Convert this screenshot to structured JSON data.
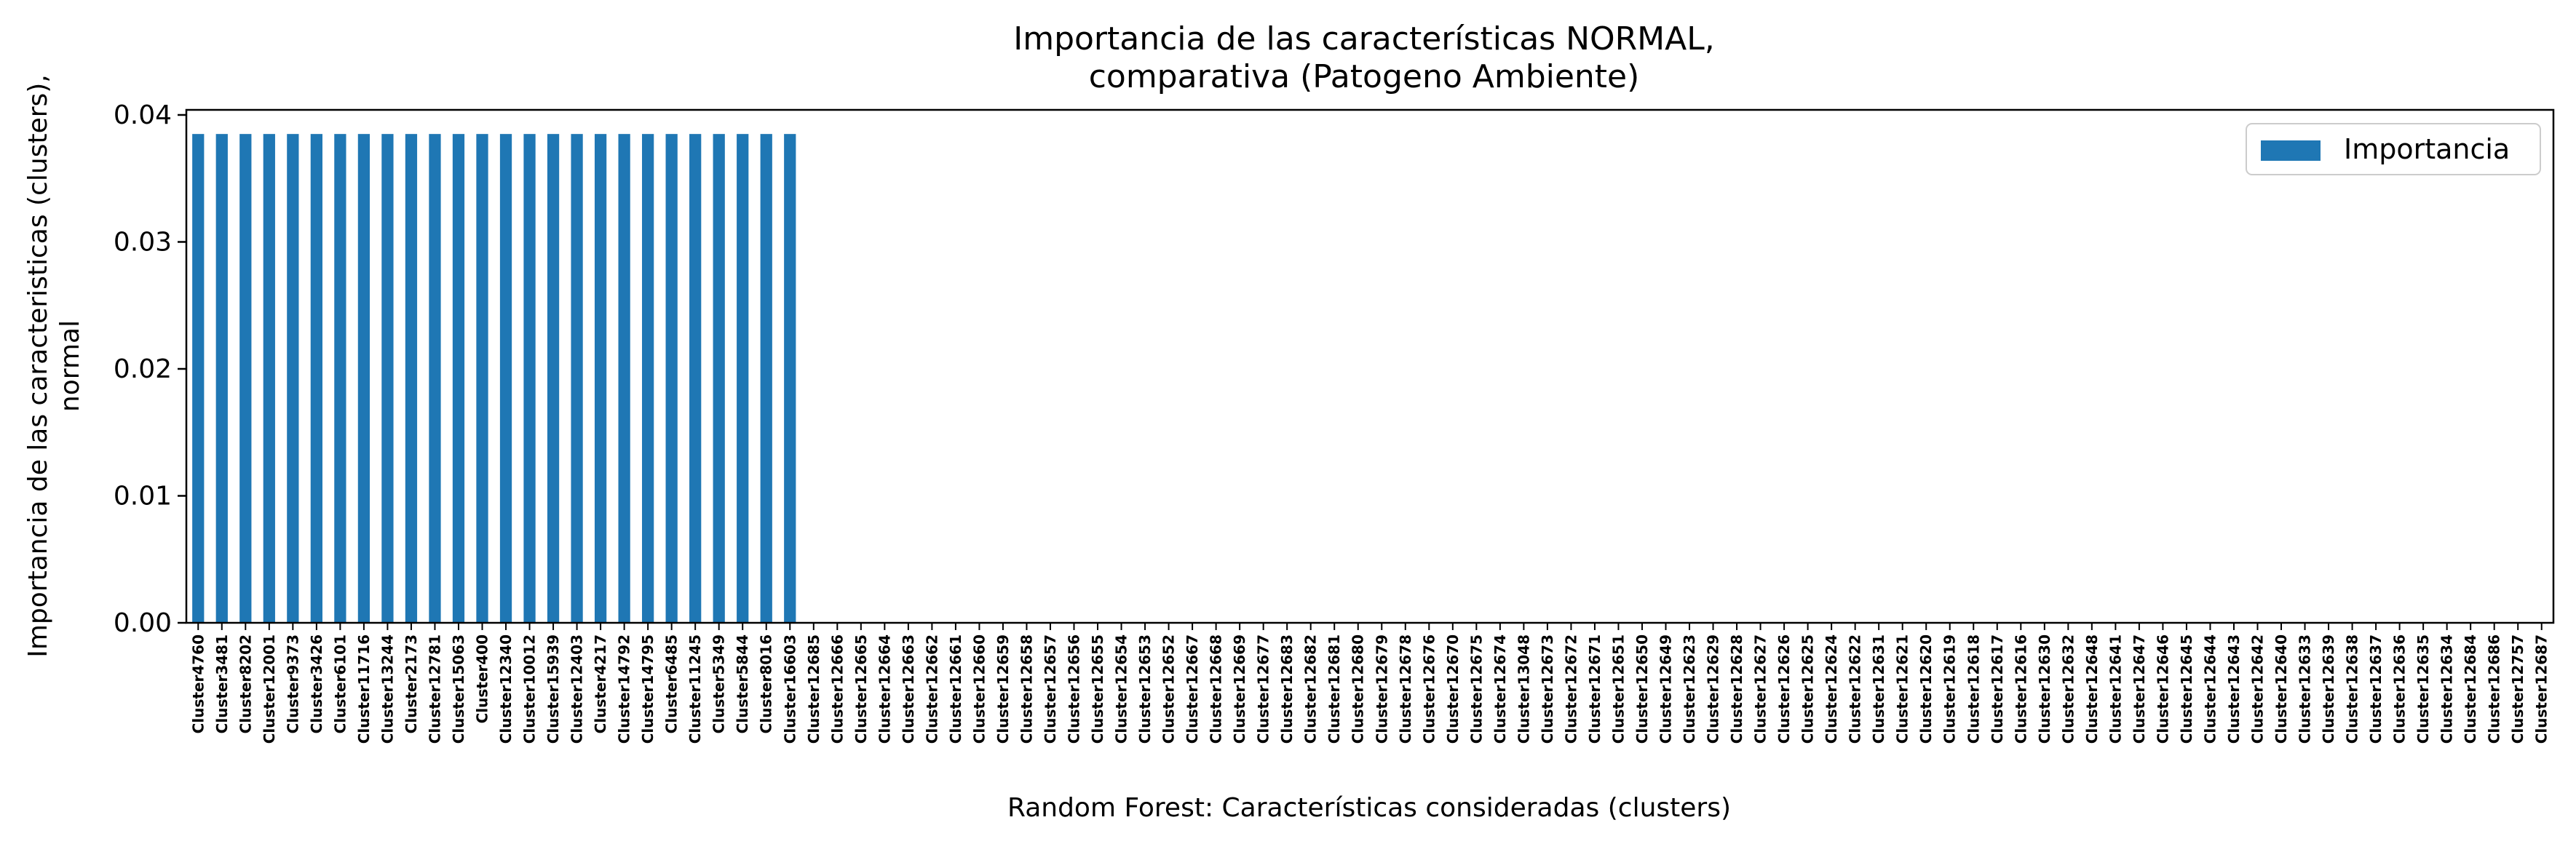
{
  "chart_data": {
    "type": "bar",
    "title": "Importancia de las características NORMAL,\ncomparativa (Patogeno Ambiente)",
    "xlabel": "Random Forest: Características consideradas (clusters)",
    "ylabel": "Importancia de las caracteristicas (clusters),\nnormal",
    "ylim": [
      0,
      0.0404
    ],
    "yticks": [
      "0.00",
      "0.01",
      "0.02",
      "0.03",
      "0.04"
    ],
    "ytick_values": [
      0,
      0.01,
      0.02,
      0.03,
      0.04
    ],
    "legend": {
      "position": "top-right",
      "entries": [
        "Importancia"
      ]
    },
    "grid": false,
    "color": "#1f77b4",
    "series": [
      {
        "name": "Importancia",
        "values": [
          0.0385,
          0.0385,
          0.0385,
          0.0385,
          0.0385,
          0.0385,
          0.0385,
          0.0385,
          0.0385,
          0.0385,
          0.0385,
          0.0385,
          0.0385,
          0.0385,
          0.0385,
          0.0385,
          0.0385,
          0.0385,
          0.0385,
          0.0385,
          0.0385,
          0.0385,
          0.0385,
          0.0385,
          0.0385,
          0.0385,
          0,
          0,
          0,
          0,
          0,
          0,
          0,
          0,
          0,
          0,
          0,
          0,
          0,
          0,
          0,
          0,
          0,
          0,
          0,
          0,
          0,
          0,
          0,
          0,
          0,
          0,
          0,
          0,
          0,
          0,
          0,
          0,
          0,
          0,
          0,
          0,
          0,
          0,
          0,
          0,
          0,
          0,
          0,
          0,
          0,
          0,
          0,
          0,
          0,
          0,
          0,
          0,
          0,
          0,
          0,
          0,
          0,
          0,
          0,
          0,
          0,
          0,
          0,
          0,
          0,
          0,
          0,
          0,
          0,
          0,
          0,
          0,
          0,
          0
        ]
      }
    ],
    "categories": [
      "Cluster4760",
      "Cluster3481",
      "Cluster8202",
      "Cluster12001",
      "Cluster9373",
      "Cluster3426",
      "Cluster6101",
      "Cluster11716",
      "Cluster13244",
      "Cluster2173",
      "Cluster12781",
      "Cluster15063",
      "Cluster400",
      "Cluster12340",
      "Cluster10012",
      "Cluster15939",
      "Cluster12403",
      "Cluster4217",
      "Cluster14792",
      "Cluster14795",
      "Cluster6485",
      "Cluster11245",
      "Cluster5349",
      "Cluster5844",
      "Cluster8016",
      "Cluster16603",
      "Cluster12685",
      "Cluster12666",
      "Cluster12665",
      "Cluster12664",
      "Cluster12663",
      "Cluster12662",
      "Cluster12661",
      "Cluster12660",
      "Cluster12659",
      "Cluster12658",
      "Cluster12657",
      "Cluster12656",
      "Cluster12655",
      "Cluster12654",
      "Cluster12653",
      "Cluster12652",
      "Cluster12667",
      "Cluster12668",
      "Cluster12669",
      "Cluster12677",
      "Cluster12683",
      "Cluster12682",
      "Cluster12681",
      "Cluster12680",
      "Cluster12679",
      "Cluster12678",
      "Cluster12676",
      "Cluster12670",
      "Cluster12675",
      "Cluster12674",
      "Cluster13048",
      "Cluster12673",
      "Cluster12672",
      "Cluster12671",
      "Cluster12651",
      "Cluster12650",
      "Cluster12649",
      "Cluster12623",
      "Cluster12629",
      "Cluster12628",
      "Cluster12627",
      "Cluster12626",
      "Cluster12625",
      "Cluster12624",
      "Cluster12622",
      "Cluster12631",
      "Cluster12621",
      "Cluster12620",
      "Cluster12619",
      "Cluster12618",
      "Cluster12617",
      "Cluster12616",
      "Cluster12630",
      "Cluster12632",
      "Cluster12648",
      "Cluster12641",
      "Cluster12647",
      "Cluster12646",
      "Cluster12645",
      "Cluster12644",
      "Cluster12643",
      "Cluster12642",
      "Cluster12640",
      "Cluster12633",
      "Cluster12639",
      "Cluster12638",
      "Cluster12637",
      "Cluster12636",
      "Cluster12635",
      "Cluster12634",
      "Cluster12684",
      "Cluster12686",
      "Cluster12757",
      "Cluster12687"
    ]
  }
}
